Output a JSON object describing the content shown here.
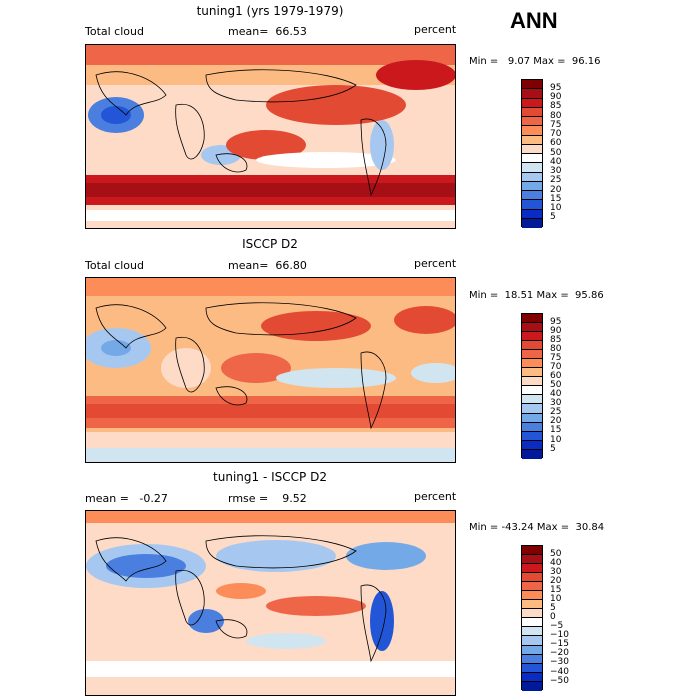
{
  "header": {
    "season": "ANN"
  },
  "panels": [
    {
      "title": "tuning1 (yrs 1979-1979)",
      "left_label": "Total cloud",
      "center_label": "mean=  66.53",
      "units": "percent",
      "minmax": "Min =   9.07 Max =  96.16",
      "colorbar": {
        "levels": [
          "95",
          "90",
          "85",
          "80",
          "75",
          "70",
          "60",
          "50",
          "40",
          "30",
          "25",
          "20",
          "15",
          "10",
          "5"
        ],
        "colors": [
          "#7f0000",
          "#a50f15",
          "#cb181d",
          "#e34a33",
          "#ef6548",
          "#fc8d59",
          "#fdbb84",
          "#fddbc7",
          "#ffffff",
          "#d1e5f0",
          "#a6c8f0",
          "#74a9e8",
          "#4a7fe0",
          "#2356d6",
          "#0a2cc4",
          "#001a9a"
        ]
      },
      "chart_data": {
        "type": "heatmap",
        "field": "Total cloud",
        "units": "percent",
        "mean": 66.53,
        "min": 9.07,
        "max": 96.16
      }
    },
    {
      "title": "ISCCP D2",
      "left_label": "Total cloud",
      "center_label": "mean=  66.80",
      "units": "percent",
      "minmax": "Min =  18.51 Max =  95.86",
      "colorbar": {
        "levels": [
          "95",
          "90",
          "85",
          "80",
          "75",
          "70",
          "60",
          "50",
          "40",
          "30",
          "25",
          "20",
          "15",
          "10",
          "5"
        ],
        "colors": [
          "#7f0000",
          "#a50f15",
          "#cb181d",
          "#e34a33",
          "#ef6548",
          "#fc8d59",
          "#fdbb84",
          "#fddbc7",
          "#ffffff",
          "#d1e5f0",
          "#a6c8f0",
          "#74a9e8",
          "#4a7fe0",
          "#2356d6",
          "#0a2cc4",
          "#001a9a"
        ]
      },
      "chart_data": {
        "type": "heatmap",
        "field": "Total cloud",
        "units": "percent",
        "mean": 66.8,
        "min": 18.51,
        "max": 95.86
      }
    },
    {
      "title": "tuning1 - ISCCP D2",
      "left_label": "mean =   -0.27",
      "center_label": "rmse =    9.52",
      "units": "percent",
      "minmax": "Min = -43.24 Max =  30.84",
      "colorbar": {
        "levels": [
          "50",
          "40",
          "30",
          "20",
          "15",
          "10",
          "5",
          "0",
          "−5",
          "−10",
          "−15",
          "−20",
          "−30",
          "−40",
          "−50"
        ],
        "colors": [
          "#7f0000",
          "#a50f15",
          "#cb181d",
          "#e34a33",
          "#ef6548",
          "#fc8d59",
          "#fdbb84",
          "#fddbc7",
          "#ffffff",
          "#d1e5f0",
          "#a6c8f0",
          "#74a9e8",
          "#4a7fe0",
          "#2356d6",
          "#0a2cc4",
          "#001a9a"
        ]
      },
      "chart_data": {
        "type": "heatmap",
        "field": "tuning1 - ISCCP D2",
        "units": "percent",
        "mean": -0.27,
        "rmse": 9.52,
        "min": -43.24,
        "max": 30.84
      }
    }
  ]
}
